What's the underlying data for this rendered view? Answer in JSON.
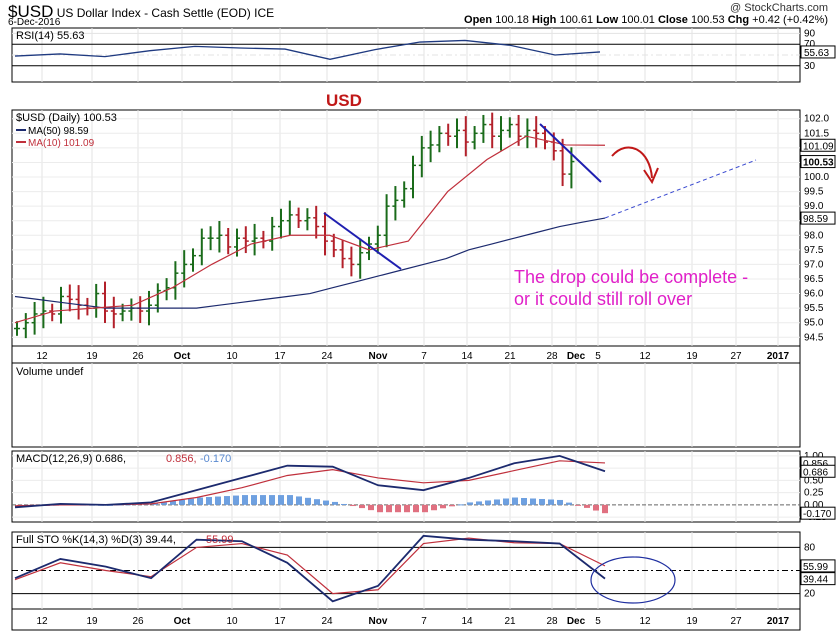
{
  "header": {
    "symbol": "$USD",
    "name": "US Dollar Index - Cash Settle (EOD)",
    "exchange": "ICE",
    "date": "6-Dec-2016",
    "brand": "@ StockCharts.com",
    "open_label": "Open",
    "open": "100.18",
    "high_label": "High",
    "high": "100.61",
    "low_label": "Low",
    "low": "100.01",
    "close_label": "Close",
    "close": "100.53",
    "chg_label": "Chg",
    "chg": "+0.42 (+0.42%)"
  },
  "chart_data": [
    {
      "type": "line",
      "panel": "rsi",
      "legend": "RSI(14) 55.63",
      "ylim": [
        0,
        100
      ],
      "y_ticks": [
        30,
        50,
        70,
        90
      ],
      "last_label": "55.63",
      "color": "#1f3a80",
      "x": [
        "Sep 12",
        "Sep 19",
        "Sep 26",
        "Oct 3",
        "Oct 10",
        "Oct 17",
        "Oct 24",
        "Oct 31",
        "Nov 7",
        "Nov 14",
        "Nov 21",
        "Nov 28",
        "Dec 5",
        "Dec 6"
      ],
      "values": [
        48,
        52,
        47,
        58,
        66,
        63,
        61,
        42,
        60,
        74,
        77,
        68,
        50,
        55.63
      ]
    },
    {
      "type": "ohlc",
      "panel": "price",
      "title": "USD",
      "legend": "$USD (Daily) 100.53",
      "ylim": [
        94.2,
        102.3
      ],
      "y_ticks": [
        94.5,
        95.0,
        95.5,
        96.0,
        96.5,
        97.0,
        97.5,
        98.0,
        98.5,
        99.0,
        99.5,
        100.0,
        100.5,
        101.0,
        101.5,
        102.0
      ],
      "last_labels": [
        "101.09",
        "100.53",
        "98.59"
      ],
      "x_ticks": [
        "12",
        "19",
        "26",
        "Oct",
        "10",
        "17",
        "24",
        "Nov",
        "7",
        "14",
        "21",
        "28",
        "Dec",
        "5",
        "12",
        "19",
        "27",
        "2017"
      ],
      "series": [
        {
          "name": "$USD",
          "color": "#1a6b1a",
          "down_color": "#b3202a",
          "start_date": "2016-09-12",
          "close": [
            94.8,
            95.0,
            95.3,
            95.4,
            95.3,
            95.9,
            95.8,
            95.6,
            95.5,
            96.0,
            95.4,
            95.3,
            95.4,
            95.5,
            95.4,
            95.6,
            96.1,
            96.2,
            96.7,
            97.0,
            97.3,
            97.9,
            97.9,
            98.0,
            97.6,
            97.9,
            97.8,
            97.9,
            97.8,
            98.3,
            98.5,
            98.7,
            98.5,
            98.6,
            98.3,
            97.8,
            97.5,
            97.2,
            97.0,
            97.4,
            97.7,
            98.0,
            99.0,
            99.2,
            99.6,
            100.4,
            101.0,
            101.1,
            101.5,
            101.4,
            101.6,
            101.2,
            101.5,
            101.8,
            101.4,
            101.6,
            101.8,
            101.4,
            101.6,
            101.5,
            101.2,
            100.9,
            100.1,
            100.53
          ]
        },
        {
          "name": "MA(50)",
          "legend": "MA(50) 98.59",
          "color": "#1c2a6e",
          "values": [
            95.9,
            95.8,
            95.7,
            95.6,
            95.5,
            95.5,
            95.5,
            95.5,
            95.5,
            95.6,
            95.7,
            95.8,
            95.9,
            96.0,
            96.2,
            96.4,
            96.6,
            96.8,
            97.0,
            97.2,
            97.5,
            97.7,
            97.9,
            98.1,
            98.3,
            98.45,
            98.59
          ]
        },
        {
          "name": "MA(10)",
          "legend": "MA(10) 101.09",
          "color": "#c0303c",
          "values": [
            95.0,
            95.4,
            95.5,
            95.6,
            96.2,
            97.0,
            97.7,
            98.0,
            98.0,
            97.5,
            97.8,
            99.5,
            100.6,
            101.4,
            101.1,
            101.09
          ]
        }
      ],
      "annotations": [
        {
          "text": "The drop could be complete -",
          "color": "#e020c8"
        },
        {
          "text": "or it could still roll over",
          "color": "#e020c8"
        }
      ]
    },
    {
      "type": "bar",
      "panel": "volume",
      "legend": "Volume undef",
      "values": []
    },
    {
      "type": "line",
      "panel": "macd",
      "legend_parts": [
        "MACD(12,26,9) 0.686,",
        "0.856,",
        "-0.170"
      ],
      "ylim": [
        -0.35,
        1.1
      ],
      "y_ticks": [
        1.0,
        0.75,
        0.5,
        0.25,
        0.0,
        -0.25
      ],
      "last_labels": [
        "0.856",
        "0.686",
        "-0.170"
      ],
      "series": [
        {
          "name": "MACD",
          "color": "#1c2a6e",
          "values": [
            -0.05,
            0.02,
            0.0,
            0.05,
            0.3,
            0.55,
            0.8,
            0.78,
            0.4,
            0.3,
            0.55,
            0.85,
            1.0,
            0.686
          ]
        },
        {
          "name": "Signal",
          "color": "#c0303c",
          "values": [
            -0.02,
            0.0,
            0.0,
            0.02,
            0.15,
            0.35,
            0.6,
            0.72,
            0.55,
            0.45,
            0.5,
            0.7,
            0.9,
            0.856
          ]
        },
        {
          "name": "Histogram",
          "color": "#6ea0e0",
          "neg_color": "#e07080",
          "values": [
            -0.02,
            0.01,
            0.0,
            0.03,
            0.15,
            0.2,
            0.2,
            0.06,
            -0.15,
            -0.15,
            0.05,
            0.15,
            0.1,
            -0.17
          ]
        }
      ]
    },
    {
      "type": "line",
      "panel": "sto",
      "legend_parts": [
        "Full STO %K(14,3) %D(3) 39.44,",
        "55.99"
      ],
      "ylim": [
        0,
        100
      ],
      "y_ticks": [
        20,
        50,
        80
      ],
      "last_labels": [
        "55.99",
        "39.44"
      ],
      "series": [
        {
          "name": "%K",
          "color": "#1c2a6e",
          "values": [
            40,
            65,
            55,
            40,
            90,
            88,
            60,
            10,
            30,
            95,
            90,
            88,
            85,
            39.44
          ]
        },
        {
          "name": "%D",
          "color": "#c0303c",
          "values": [
            38,
            60,
            50,
            42,
            80,
            85,
            70,
            20,
            25,
            85,
            92,
            86,
            85,
            55.99
          ]
        }
      ]
    }
  ]
}
